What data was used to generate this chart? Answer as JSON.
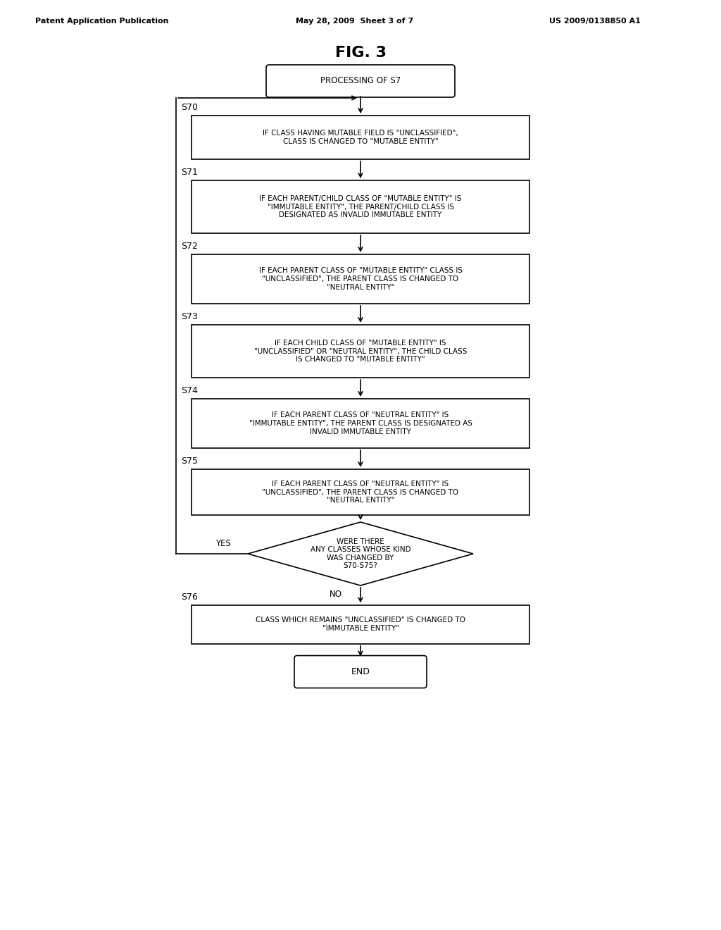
{
  "bg_color": "#ffffff",
  "title": "FIG. 3",
  "header_left": "Patent Application Publication",
  "header_mid": "May 28, 2009  Sheet 3 of 7",
  "header_right": "US 2009/0138850 A1",
  "start_label": "PROCESSING OF S7",
  "boxes": [
    {
      "label": "S70",
      "text": "IF CLASS HAVING MUTABLE FIELD IS \"UNCLASSIFIED\",\nCLASS IS CHANGED TO \"MUTABLE ENTITY\""
    },
    {
      "label": "S71",
      "text": "IF EACH PARENT/CHILD CLASS OF \"MUTABLE ENTITY\" IS\n\"IMMUTABLE ENTITY\", THE PARENT/CHILD CLASS IS\nDESIGNATED AS INVALID IMMUTABLE ENTITY"
    },
    {
      "label": "S72",
      "text": "IF EACH PARENT CLASS OF \"MUTABLE ENTITY\" CLASS IS\n\"UNCLASSIFIED\", THE PARENT CLASS IS CHANGED TO\n\"NEUTRAL ENTITY\""
    },
    {
      "label": "S73",
      "text": "IF EACH CHILD CLASS OF \"MUTABLE ENTITY\" IS\n\"UNCLASSIFIED\" OR \"NEUTRAL ENTITY\", THE CHILD CLASS\nIS CHANGED TO \"MUTABLE ENTITY\""
    },
    {
      "label": "S74",
      "text": "IF EACH PARENT CLASS OF \"NEUTRAL ENTITY\" IS\n\"IMMUTABLE ENTITY\", THE PARENT CLASS IS DESIGNATED AS\nINVALID IMMUTABLE ENTITY"
    },
    {
      "label": "S75",
      "text": "IF EACH PARENT CLASS OF \"NEUTRAL ENTITY\" IS\n\"UNCLASSIFIED\", THE PARENT CLASS IS CHANGED TO\n\"NEUTRAL ENTITY\""
    }
  ],
  "diamond_text": "WERE THERE\nANY CLASSES WHOSE KIND\nWAS CHANGED BY\nS70-S75?",
  "yes_label": "YES",
  "no_label": "NO",
  "s76_label": "S76",
  "s76_text": "CLASS WHICH REMAINS \"UNCLASSIFIED\" IS CHANGED TO\n\"IMMUTABLE ENTITY\"",
  "end_label": "END"
}
